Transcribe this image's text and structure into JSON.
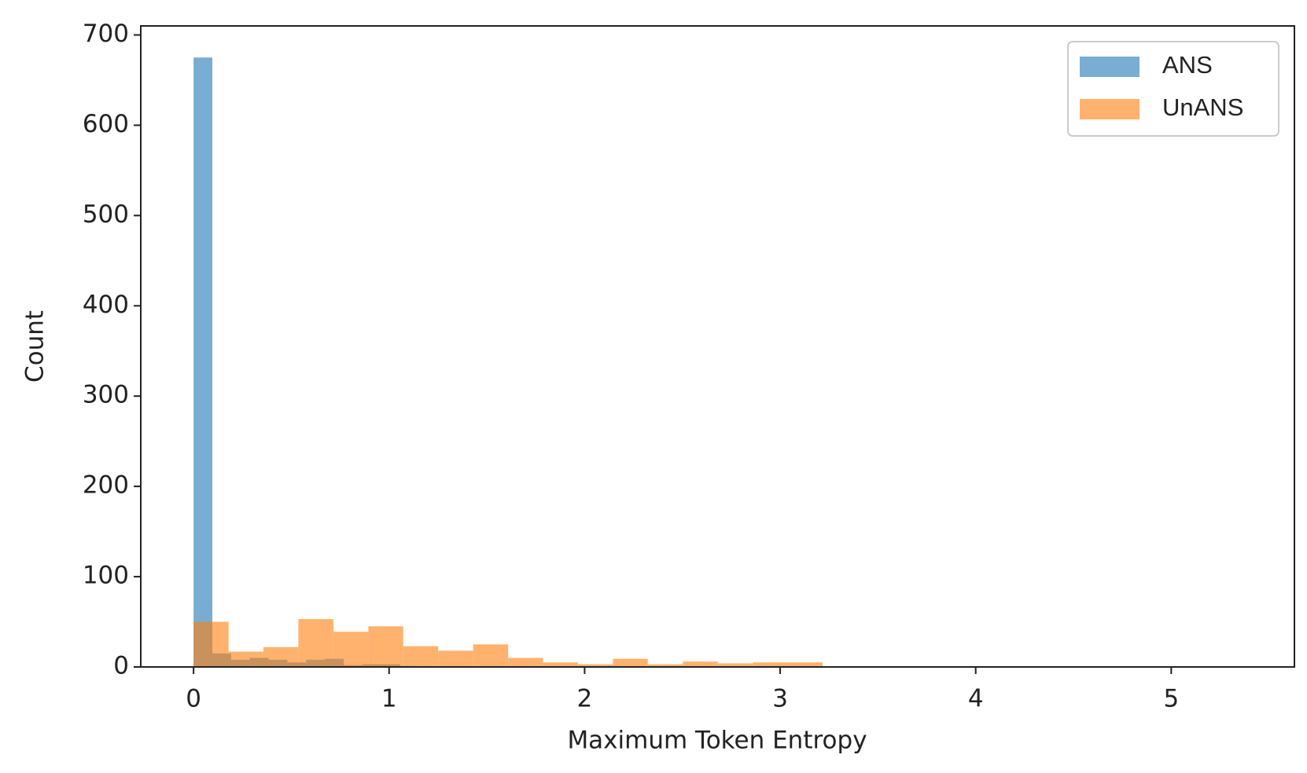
{
  "chart_data": {
    "type": "histogram",
    "xlabel": "Maximum Token Entropy",
    "ylabel": "Count",
    "xlim": [
      -0.27,
      5.63
    ],
    "ylim": [
      0,
      710
    ],
    "xticks": [
      0,
      1,
      2,
      3,
      4,
      5
    ],
    "yticks": [
      0,
      100,
      200,
      300,
      400,
      500,
      600,
      700
    ],
    "legend": "upper right",
    "opacity": 0.6,
    "series": [
      {
        "name": "ANS",
        "color": "#1f77b4",
        "bins": [
          0,
          0.096,
          0.192,
          0.288,
          0.384,
          0.48,
          0.576,
          0.672,
          0.768,
          0.864,
          0.96,
          1.056,
          1.152
        ],
        "values": [
          675,
          15,
          8,
          10,
          8,
          5,
          8,
          9,
          2,
          3,
          3,
          1
        ]
      },
      {
        "name": "UnANS",
        "color": "#ff7f0e",
        "bins": [
          0,
          0.179,
          0.357,
          0.536,
          0.715,
          0.894,
          1.072,
          1.251,
          1.43,
          1.609,
          1.787,
          1.966,
          2.145,
          2.323,
          2.502,
          2.681,
          2.86,
          3.038,
          3.217
        ],
        "values": [
          50,
          17,
          22,
          53,
          39,
          45,
          23,
          18,
          25,
          10,
          5,
          3,
          9,
          3,
          6,
          4,
          5,
          5
        ]
      }
    ]
  }
}
